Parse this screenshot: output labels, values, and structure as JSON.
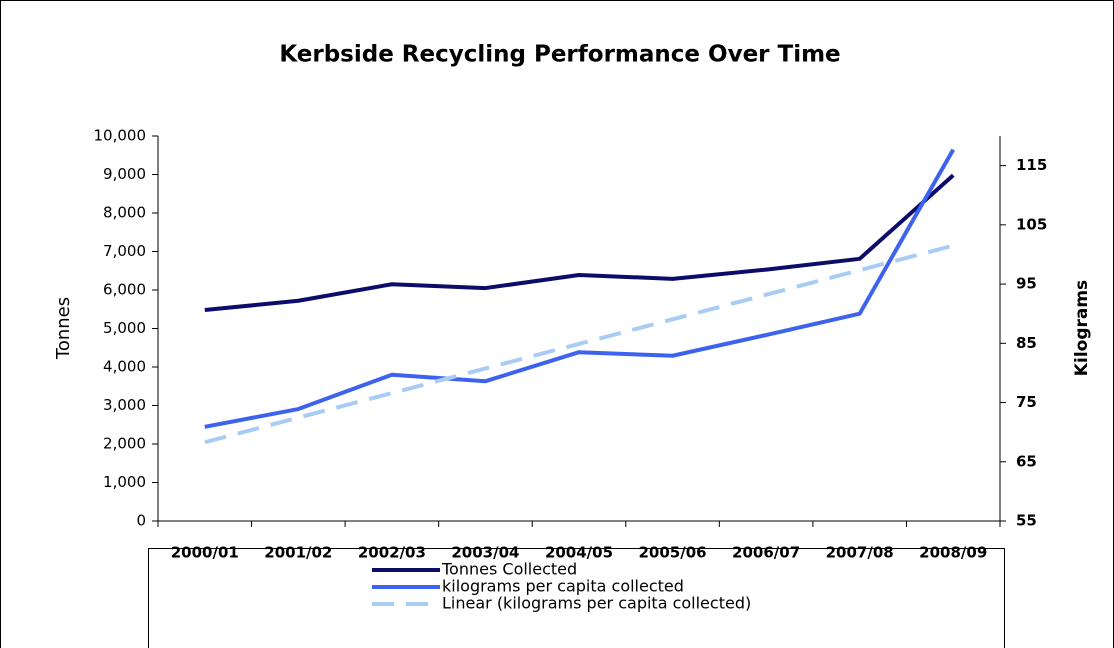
{
  "chart_data": {
    "type": "line",
    "title": "Kerbside Recycling Performance Over Time",
    "ylabel": "Tonnes",
    "y2label": "Kilograms",
    "categories": [
      "2000/01",
      "2001/02",
      "2002/03",
      "2003/04",
      "2004/05",
      "2005/06",
      "2006/07",
      "2007/08",
      "2008/09"
    ],
    "series": [
      {
        "name": "Tonnes Collected",
        "color": "#0c0c6b",
        "axis": "y",
        "style": "solid",
        "values": [
          5480,
          5720,
          6150,
          6050,
          6390,
          6290,
          6530,
          6810,
          8980
        ]
      },
      {
        "name": "kilograms per capita collected",
        "color": "#3d63ee",
        "axis": "y2",
        "style": "solid",
        "values": [
          70.9,
          73.9,
          79.7,
          78.6,
          83.5,
          82.9,
          86.4,
          90,
          117.7
        ]
      },
      {
        "name": "Linear (kilograms per capita collected)",
        "color": "#a9ccf4",
        "axis": "y2",
        "style": "dashed",
        "values": [
          68.3,
          72.45,
          76.6,
          80.75,
          84.9,
          89.05,
          93.2,
          97.35,
          101.5
        ]
      }
    ],
    "ylim": [
      0,
      10000
    ],
    "yticks": [
      0,
      {
        "value": 1000,
        "label": "1,000"
      },
      {
        "value": 2000,
        "label": "2,000"
      },
      {
        "value": 3000,
        "label": "3,000"
      },
      {
        "value": 4000,
        "label": "4,000"
      },
      {
        "value": 5000,
        "label": "5,000"
      },
      {
        "value": 6000,
        "label": "6,000"
      },
      {
        "value": 7000,
        "label": "7,000"
      },
      {
        "value": 8000,
        "label": "8,000"
      },
      {
        "value": 9000,
        "label": "9,000"
      },
      {
        "value": 10000,
        "label": "10,000"
      }
    ],
    "y2lim": [
      55,
      120
    ],
    "y2ticks": [
      55,
      65,
      75,
      85,
      95,
      105,
      115
    ],
    "grid": false,
    "legend": "bottom"
  }
}
